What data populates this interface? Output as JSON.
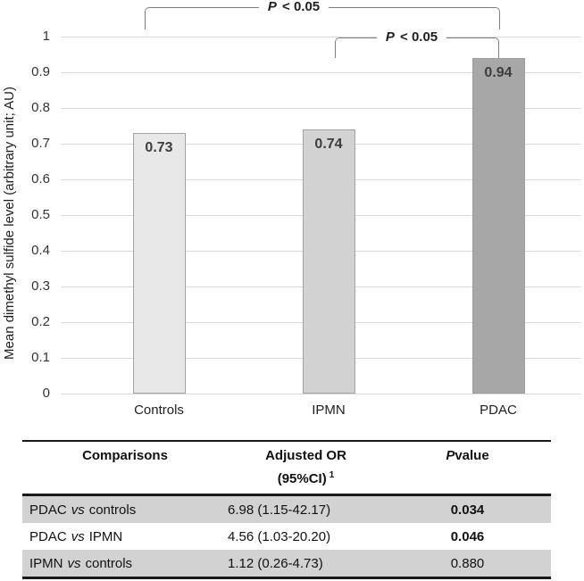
{
  "chart_data": {
    "type": "bar",
    "title": "",
    "xlabel": "",
    "ylabel": "Mean dimethyl sulfide level (arbitrary unit; AU)",
    "categories": [
      "Controls",
      "IPMN",
      "PDAC"
    ],
    "values": [
      0.73,
      0.74,
      0.94
    ],
    "value_labels": [
      "0.73",
      "0.74",
      "0.94"
    ],
    "bar_fill_colors": [
      "#e8e8e8",
      "#d2d2d2",
      "#a7a7a7"
    ],
    "bar_border_colors": [
      "#a3a3a3",
      "#a3a3a3",
      "#9e9e9e"
    ],
    "ylim": [
      0,
      1
    ],
    "ytick_values": [
      0,
      0.1,
      0.2,
      0.3,
      0.4,
      0.5,
      0.6,
      0.7,
      0.8,
      0.9,
      1
    ],
    "ytick_labels": [
      "0",
      "0.1",
      "0.2",
      "0.3",
      "0.4",
      "0.5",
      "0.6",
      "0.7",
      "0.8",
      "0.9",
      "1"
    ],
    "grid": true,
    "gridline_color": "#d9d9d9",
    "legend": "none",
    "annotations": [
      {
        "italic": "P",
        "rest": " < 0.05",
        "spans": "Controls-PDAC"
      },
      {
        "italic": "P",
        "rest": " < 0.05",
        "spans": "IPMN-PDAC"
      }
    ]
  },
  "table": {
    "shaded_row_color": "#d2d2d2",
    "header": {
      "col1": "Comparisons",
      "col2_line1": "Adjusted OR",
      "col2_line2": "(95%CI)",
      "col2_sup": "1",
      "col3_italic": "P",
      "col3_rest": "value"
    },
    "rows": [
      {
        "group": "PDAC",
        "vs": "vs",
        "reference": "controls",
        "adjusted_or": "6.98 (1.15-42.17)",
        "p_value": "0.034",
        "p_bold": true,
        "shaded": true
      },
      {
        "group": "PDAC",
        "vs": "vs",
        "reference": "IPMN",
        "adjusted_or": "4.56 (1.03-20.20)",
        "p_value": "0.046",
        "p_bold": true,
        "shaded": false
      },
      {
        "group": "IPMN",
        "vs": "vs",
        "reference": "controls",
        "adjusted_or": "1.12 (0.26-4.73)",
        "p_value": "0.880",
        "p_bold": false,
        "shaded": true
      }
    ]
  }
}
